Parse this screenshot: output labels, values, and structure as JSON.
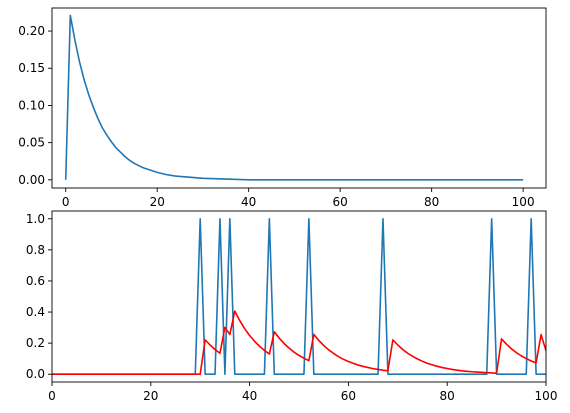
{
  "chart_data": [
    {
      "type": "line",
      "title": "",
      "xlabel": "",
      "ylabel": "",
      "xlim": [
        -3,
        105
      ],
      "ylim": [
        -0.011,
        0.231
      ],
      "grid": false,
      "xticks": [
        0,
        20,
        40,
        60,
        80,
        100
      ],
      "xtick_labels": [
        "0",
        "20",
        "40",
        "60",
        "80",
        "100"
      ],
      "yticks": [
        0.0,
        0.05,
        0.1,
        0.15,
        0.2
      ],
      "ytick_labels": [
        "0.00",
        "0.05",
        "0.10",
        "0.15",
        "0.20"
      ],
      "series": [
        {
          "color": "#1f77b4",
          "x": [
            0,
            1,
            2,
            3,
            4,
            5,
            6,
            7,
            8,
            9,
            10,
            11,
            12,
            13,
            14,
            15,
            16,
            17,
            18,
            19,
            20,
            22,
            24,
            26,
            28,
            30,
            35,
            40,
            50,
            60,
            70,
            80,
            90,
            100
          ],
          "y": [
            0.0,
            0.221,
            0.188,
            0.159,
            0.135,
            0.115,
            0.098,
            0.083,
            0.07,
            0.06,
            0.051,
            0.043,
            0.037,
            0.031,
            0.026,
            0.022,
            0.019,
            0.016,
            0.014,
            0.012,
            0.01,
            0.007,
            0.005,
            0.004,
            0.003,
            0.002,
            0.001,
            0.0,
            0.0,
            0.0,
            0.0,
            0.0,
            0.0,
            0.0
          ]
        }
      ]
    },
    {
      "type": "line",
      "title": "",
      "xlabel": "",
      "ylabel": "",
      "xlim": [
        0,
        100
      ],
      "ylim": [
        -0.05,
        1.05
      ],
      "grid": false,
      "xticks": [
        0,
        20,
        40,
        60,
        80,
        100
      ],
      "xtick_labels": [
        "0",
        "20",
        "40",
        "60",
        "80",
        "100"
      ],
      "yticks": [
        0.0,
        0.2,
        0.4,
        0.6,
        0.8,
        1.0
      ],
      "ytick_labels": [
        "0.0",
        "0.2",
        "0.4",
        "0.6",
        "0.8",
        "1.0"
      ],
      "series": [
        {
          "color": "#1f77b4",
          "x": [
            0,
            29,
            30,
            31,
            33,
            34,
            35,
            36,
            37,
            43,
            44,
            45,
            51,
            52,
            53,
            66,
            67,
            68,
            88,
            89,
            90,
            96,
            97,
            98,
            100
          ],
          "y": [
            0,
            0,
            1,
            0,
            0,
            1,
            0,
            1,
            0,
            0,
            1,
            0,
            0,
            1,
            0,
            0,
            1,
            0,
            0,
            1,
            0,
            0,
            1,
            0,
            0
          ]
        },
        {
          "color": "#ff0000",
          "x": [
            0,
            30,
            31,
            32,
            33,
            34,
            35,
            36,
            37,
            38,
            39,
            40,
            41,
            42,
            43,
            44,
            45,
            46,
            47,
            48,
            49,
            50,
            51,
            52,
            53,
            54,
            55,
            56,
            57,
            58,
            59,
            60,
            61,
            62,
            63,
            64,
            65,
            66,
            67,
            68,
            69,
            70,
            71,
            72,
            73,
            74,
            75,
            76,
            77,
            78,
            79,
            80,
            81,
            82,
            83,
            84,
            85,
            86,
            87,
            88,
            89,
            90,
            91,
            92,
            93,
            94,
            95,
            96,
            97,
            98,
            99,
            100
          ],
          "y": [
            0,
            0,
            0.221,
            0.188,
            0.159,
            0.135,
            0.301,
            0.256,
            0.406,
            0.345,
            0.293,
            0.249,
            0.212,
            0.18,
            0.153,
            0.13,
            0.273,
            0.232,
            0.197,
            0.168,
            0.142,
            0.121,
            0.103,
            0.087,
            0.256,
            0.217,
            0.185,
            0.157,
            0.134,
            0.113,
            0.096,
            0.082,
            0.07,
            0.059,
            0.05,
            0.043,
            0.036,
            0.031,
            0.026,
            0.022,
            0.221,
            0.188,
            0.159,
            0.135,
            0.115,
            0.098,
            0.083,
            0.07,
            0.06,
            0.051,
            0.043,
            0.037,
            0.031,
            0.026,
            0.022,
            0.019,
            0.016,
            0.014,
            0.012,
            0.01,
            0.008,
            0.007,
            0.227,
            0.193,
            0.164,
            0.139,
            0.118,
            0.101,
            0.085,
            0.073,
            0.255,
            0.152
          ]
        }
      ]
    }
  ]
}
